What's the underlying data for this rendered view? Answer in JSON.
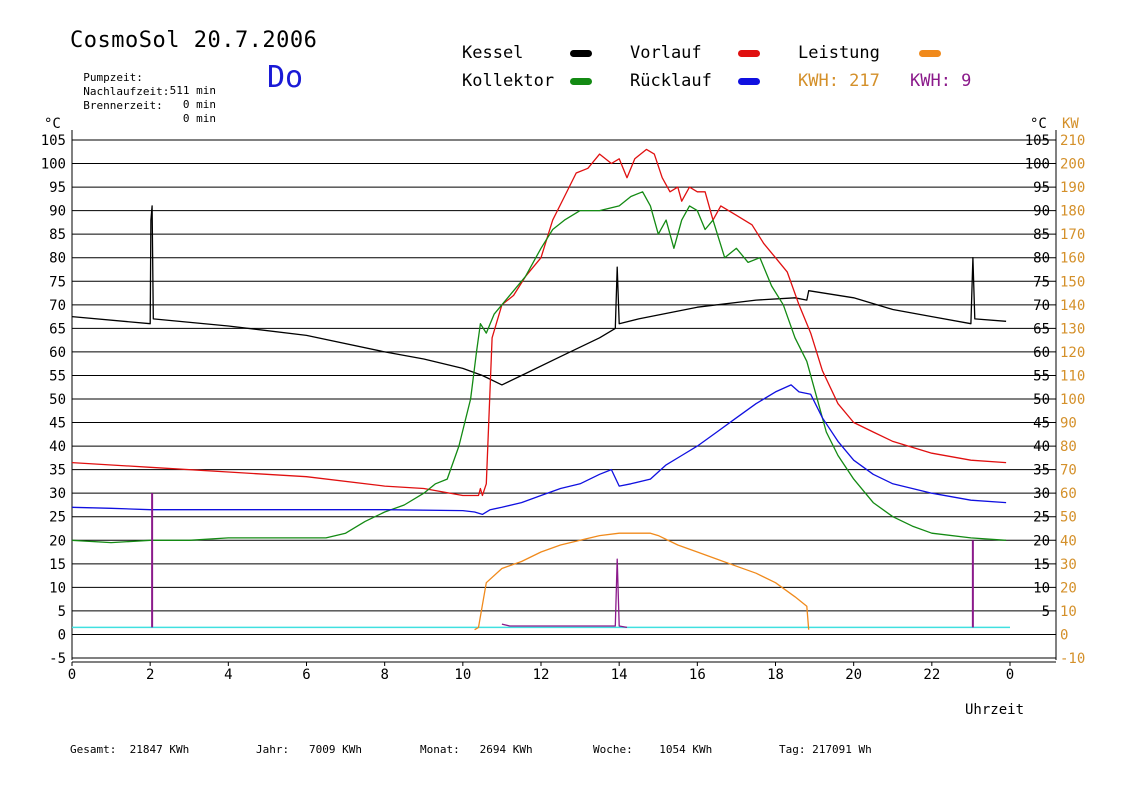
{
  "header": {
    "title": "CosmoSol 20.7.2006",
    "day": "Do",
    "stats": [
      {
        "label": "Pumpzeit:",
        "value": "511 min"
      },
      {
        "label": "Nachlaufzeit:",
        "value": "0 min"
      },
      {
        "label": "Brennerzeit:",
        "value": "0 min"
      }
    ]
  },
  "legend": {
    "kessel": "Kessel",
    "vorlauf": "Vorlauf",
    "leistung": "Leistung",
    "kollektor": "Kollektor",
    "ruecklauf": "Rücklauf",
    "kwh1": "KWH: 217",
    "kwh2": "KWH: 9"
  },
  "colors": {
    "kessel": "#000000",
    "vorlauf": "#e01010",
    "leistung": "#f08a1c",
    "kollektor": "#138a13",
    "ruecklauf": "#1010e0",
    "kwh1": "#d4902a",
    "kwh2": "#8b1a8b",
    "baseline": "#40e0e0"
  },
  "footer": {
    "gesamt": "Gesamt:  21847 KWh",
    "jahr": "Jahr:   7009 KWh",
    "monat": "Monat:   2694 KWh",
    "woche": "Woche:    1054 KWh",
    "tag": "Tag: 217091 Wh"
  },
  "chart_data": {
    "type": "line",
    "xlabel": "Uhrzeit",
    "ylabel_left": "°C",
    "ylabel_right_1": "°C",
    "ylabel_right_2": "KW",
    "xlim": [
      0,
      24
    ],
    "ylim": [
      -5,
      105
    ],
    "y2lim": [
      -10,
      210
    ],
    "grid": true,
    "x_ticks": [
      "0",
      "2",
      "4",
      "6",
      "8",
      "10",
      "12",
      "14",
      "16",
      "18",
      "20",
      "22",
      "0"
    ],
    "y_ticks": [
      -5,
      0,
      5,
      10,
      15,
      20,
      25,
      30,
      35,
      40,
      45,
      50,
      55,
      60,
      65,
      70,
      75,
      80,
      85,
      90,
      95,
      100,
      105
    ],
    "y2_ticks": [
      -10,
      0,
      10,
      20,
      30,
      40,
      50,
      60,
      70,
      80,
      90,
      100,
      110,
      120,
      130,
      140,
      150,
      160,
      170,
      180,
      190,
      200,
      210
    ],
    "series": [
      {
        "name": "Kessel",
        "key": "kessel",
        "points": [
          [
            0,
            67.5
          ],
          [
            2,
            66
          ],
          [
            2.02,
            88
          ],
          [
            2.05,
            91
          ],
          [
            2.08,
            67
          ],
          [
            4,
            65.5
          ],
          [
            6,
            63.5
          ],
          [
            8,
            60
          ],
          [
            9,
            58.5
          ],
          [
            10,
            56.5
          ],
          [
            10.5,
            55
          ],
          [
            11,
            53
          ],
          [
            11.5,
            55
          ],
          [
            12.5,
            59
          ],
          [
            13.5,
            63
          ],
          [
            13.9,
            65
          ],
          [
            13.95,
            78
          ],
          [
            14,
            66
          ],
          [
            14.5,
            67
          ],
          [
            16,
            69.5
          ],
          [
            17.5,
            71
          ],
          [
            18.5,
            71.5
          ],
          [
            18.8,
            71
          ],
          [
            18.85,
            73
          ],
          [
            20,
            71.5
          ],
          [
            21,
            69
          ],
          [
            22,
            67.5
          ],
          [
            23,
            66
          ],
          [
            23.05,
            80
          ],
          [
            23.1,
            67
          ],
          [
            23.9,
            66.5
          ]
        ]
      },
      {
        "name": "Vorlauf",
        "key": "vorlauf",
        "points": [
          [
            0,
            36.5
          ],
          [
            2,
            35.5
          ],
          [
            4,
            34.5
          ],
          [
            6,
            33.5
          ],
          [
            8,
            31.5
          ],
          [
            9,
            31
          ],
          [
            10,
            29.5
          ],
          [
            10.4,
            29.5
          ],
          [
            10.45,
            31
          ],
          [
            10.5,
            29.5
          ],
          [
            10.6,
            32
          ],
          [
            10.75,
            63
          ],
          [
            11,
            70
          ],
          [
            11.3,
            72
          ],
          [
            11.6,
            76
          ],
          [
            12,
            80
          ],
          [
            12.3,
            88
          ],
          [
            12.6,
            93
          ],
          [
            12.9,
            98
          ],
          [
            13.2,
            99
          ],
          [
            13.5,
            102
          ],
          [
            13.8,
            100
          ],
          [
            14,
            101
          ],
          [
            14.2,
            97
          ],
          [
            14.4,
            101
          ],
          [
            14.7,
            103
          ],
          [
            14.9,
            102
          ],
          [
            15.1,
            97
          ],
          [
            15.3,
            94
          ],
          [
            15.5,
            95
          ],
          [
            15.6,
            92
          ],
          [
            15.8,
            95
          ],
          [
            16,
            94
          ],
          [
            16.2,
            94
          ],
          [
            16.4,
            88
          ],
          [
            16.6,
            91
          ],
          [
            17,
            89
          ],
          [
            17.4,
            87
          ],
          [
            17.7,
            83
          ],
          [
            18,
            80
          ],
          [
            18.3,
            77
          ],
          [
            18.6,
            70
          ],
          [
            18.9,
            64
          ],
          [
            19.2,
            56
          ],
          [
            19.6,
            49
          ],
          [
            20,
            45
          ],
          [
            20.5,
            43
          ],
          [
            21,
            41
          ],
          [
            22,
            38.5
          ],
          [
            23,
            37
          ],
          [
            23.9,
            36.5
          ]
        ]
      },
      {
        "name": "Kollektor",
        "key": "kollektor",
        "points": [
          [
            0,
            20
          ],
          [
            1,
            19.5
          ],
          [
            2,
            20
          ],
          [
            3,
            20
          ],
          [
            4,
            20.5
          ],
          [
            5,
            20.5
          ],
          [
            6,
            20.5
          ],
          [
            6.5,
            20.5
          ],
          [
            7,
            21.5
          ],
          [
            7.5,
            24
          ],
          [
            8,
            26
          ],
          [
            8.5,
            27.5
          ],
          [
            9,
            30
          ],
          [
            9.3,
            32
          ],
          [
            9.6,
            33
          ],
          [
            9.9,
            40
          ],
          [
            10.2,
            50
          ],
          [
            10.35,
            60
          ],
          [
            10.45,
            66
          ],
          [
            10.6,
            64
          ],
          [
            10.8,
            68
          ],
          [
            11.2,
            72
          ],
          [
            11.6,
            76
          ],
          [
            12,
            82
          ],
          [
            12.3,
            86
          ],
          [
            12.6,
            88
          ],
          [
            13,
            90
          ],
          [
            13.5,
            90
          ],
          [
            14,
            91
          ],
          [
            14.3,
            93
          ],
          [
            14.6,
            94
          ],
          [
            14.8,
            91
          ],
          [
            15,
            85
          ],
          [
            15.2,
            88
          ],
          [
            15.4,
            82
          ],
          [
            15.6,
            88
          ],
          [
            15.8,
            91
          ],
          [
            16,
            90
          ],
          [
            16.2,
            86
          ],
          [
            16.4,
            88
          ],
          [
            16.7,
            80
          ],
          [
            17,
            82
          ],
          [
            17.3,
            79
          ],
          [
            17.6,
            80
          ],
          [
            17.9,
            74
          ],
          [
            18.2,
            70
          ],
          [
            18.5,
            63
          ],
          [
            18.8,
            58
          ],
          [
            19,
            52
          ],
          [
            19.3,
            43
          ],
          [
            19.6,
            38
          ],
          [
            20,
            33
          ],
          [
            20.5,
            28
          ],
          [
            21,
            25
          ],
          [
            21.5,
            23
          ],
          [
            22,
            21.5
          ],
          [
            23,
            20.5
          ],
          [
            23.9,
            20
          ]
        ]
      },
      {
        "name": "Rücklauf",
        "key": "ruecklauf",
        "points": [
          [
            0,
            27
          ],
          [
            1,
            26.8
          ],
          [
            2,
            26.5
          ],
          [
            3,
            26.5
          ],
          [
            4,
            26.5
          ],
          [
            6,
            26.5
          ],
          [
            8,
            26.5
          ],
          [
            10,
            26.3
          ],
          [
            10.3,
            26
          ],
          [
            10.5,
            25.5
          ],
          [
            10.7,
            26.5
          ],
          [
            11,
            27
          ],
          [
            11.5,
            28
          ],
          [
            12,
            29.5
          ],
          [
            12.5,
            31
          ],
          [
            13,
            32
          ],
          [
            13.5,
            34
          ],
          [
            13.8,
            35
          ],
          [
            14,
            31.5
          ],
          [
            14.3,
            32
          ],
          [
            14.8,
            33
          ],
          [
            15.2,
            36
          ],
          [
            15.6,
            38
          ],
          [
            16,
            40
          ],
          [
            16.5,
            43
          ],
          [
            17,
            46
          ],
          [
            17.5,
            49
          ],
          [
            18,
            51.5
          ],
          [
            18.4,
            53
          ],
          [
            18.6,
            51.5
          ],
          [
            18.9,
            51
          ],
          [
            19.2,
            46
          ],
          [
            19.6,
            41
          ],
          [
            20,
            37
          ],
          [
            20.5,
            34
          ],
          [
            21,
            32
          ],
          [
            22,
            30
          ],
          [
            23,
            28.5
          ],
          [
            23.9,
            28
          ]
        ]
      },
      {
        "name": "Leistung",
        "key": "leistung",
        "points": [
          [
            10.3,
            1
          ],
          [
            10.4,
            1.5
          ],
          [
            10.6,
            11
          ],
          [
            11,
            14
          ],
          [
            11.5,
            15.5
          ],
          [
            12,
            17.5
          ],
          [
            12.5,
            19
          ],
          [
            13,
            20
          ],
          [
            13.5,
            21
          ],
          [
            14,
            21.5
          ],
          [
            14.5,
            21.5
          ],
          [
            14.8,
            21.5
          ],
          [
            15,
            21
          ],
          [
            15.5,
            19
          ],
          [
            16,
            17.5
          ],
          [
            16.5,
            16
          ],
          [
            17,
            14.5
          ],
          [
            17.5,
            13
          ],
          [
            18,
            11
          ],
          [
            18.5,
            8
          ],
          [
            18.8,
            6
          ],
          [
            18.85,
            1
          ]
        ]
      },
      {
        "name": "KWH2",
        "key": "kwh2",
        "points": [
          [
            11,
            2.2
          ],
          [
            11.2,
            1.8
          ],
          [
            12,
            1.8
          ],
          [
            13,
            1.8
          ],
          [
            13.9,
            1.8
          ],
          [
            13.95,
            16
          ],
          [
            14,
            1.8
          ],
          [
            14.2,
            1.5
          ]
        ]
      }
    ],
    "spikes": [
      {
        "key": "kwh2",
        "x": 2.05,
        "top": 30
      },
      {
        "key": "kwh2",
        "x": 23.05,
        "top": 20
      }
    ],
    "baseline_value": 1.5
  }
}
